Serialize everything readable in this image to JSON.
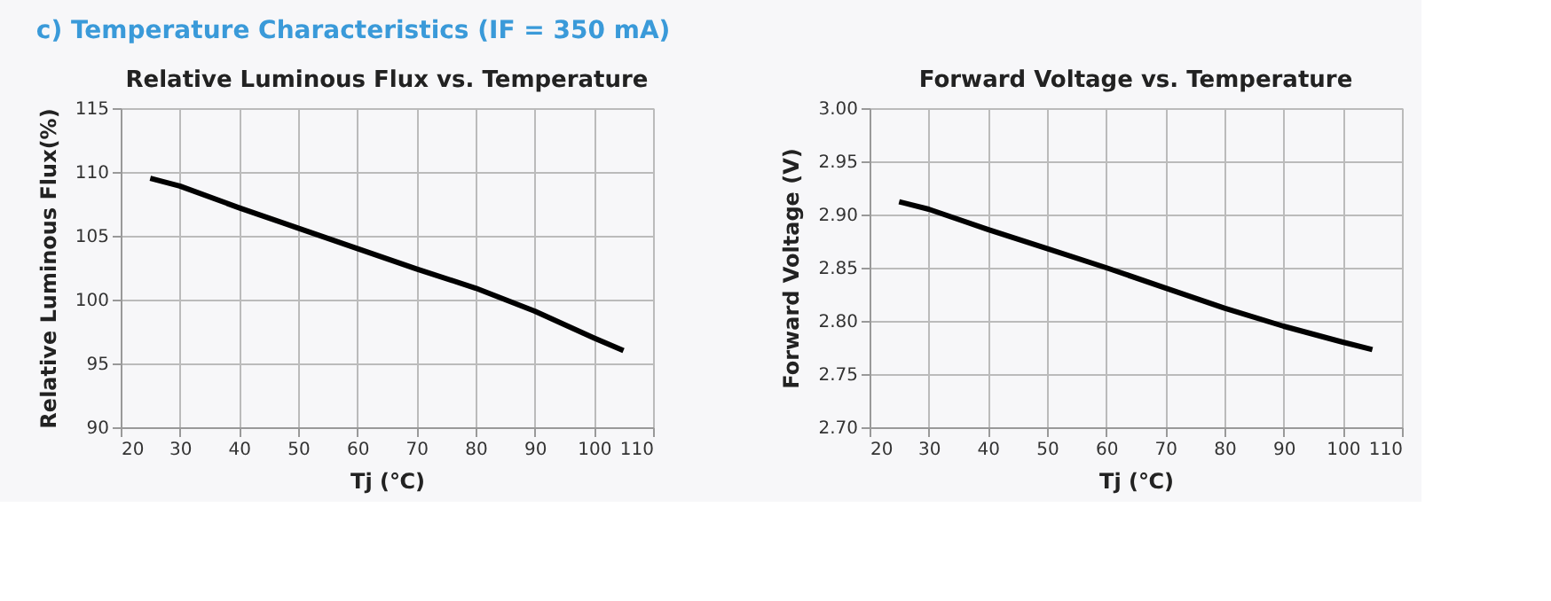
{
  "chart_data": [
    {
      "type": "line",
      "title": "Relative Luminous Flux vs. Temperature",
      "xlabel": "Tj (℃)",
      "ylabel": "Relative Luminous Flux(%)",
      "annotations": [
        "c)  Temperature Characteristics    (IF = 350 mA)"
      ],
      "x": [
        25,
        30,
        40,
        50,
        60,
        70,
        80,
        90,
        100,
        105
      ],
      "series": [
        {
          "color": "#000000",
          "values": [
            109.5,
            108.9,
            107.2,
            105.6,
            104.0,
            102.4,
            100.9,
            99.1,
            97.0,
            96.0
          ]
        }
      ],
      "xlim": [
        20,
        110
      ],
      "xticks": [
        20,
        30,
        40,
        50,
        60,
        70,
        80,
        90,
        100,
        110
      ],
      "ylim": [
        90,
        115
      ],
      "yticks": [
        90,
        95,
        100,
        105,
        110,
        115
      ],
      "grid": true,
      "marker": "none",
      "line_style": "solid"
    },
    {
      "type": "line",
      "title": "Forward Voltage vs. Temperature",
      "xlabel": "Tj (℃)",
      "ylabel": "Forward Voltage (V)",
      "x": [
        25,
        30,
        40,
        50,
        60,
        70,
        80,
        90,
        100,
        105
      ],
      "series": [
        {
          "color": "#000000",
          "values": [
            2.912,
            2.905,
            2.886,
            2.868,
            2.85,
            2.831,
            2.812,
            2.795,
            2.78,
            2.773
          ]
        }
      ],
      "xlim": [
        20,
        110
      ],
      "xticks": [
        20,
        30,
        40,
        50,
        60,
        70,
        80,
        90,
        100,
        110
      ],
      "ylim": [
        2.7,
        3.0
      ],
      "yticks": [
        {
          "value": 2.7,
          "label": "2.70"
        },
        {
          "value": 2.75,
          "label": "2.75"
        },
        {
          "value": 2.8,
          "label": "2.80"
        },
        {
          "value": 2.85,
          "label": "2.85"
        },
        {
          "value": 2.9,
          "label": "2.90"
        },
        {
          "value": 2.95,
          "label": "2.95"
        },
        {
          "value": 3.0,
          "label": "3.00"
        }
      ],
      "grid": true,
      "marker": "none",
      "line_style": "solid"
    }
  ]
}
